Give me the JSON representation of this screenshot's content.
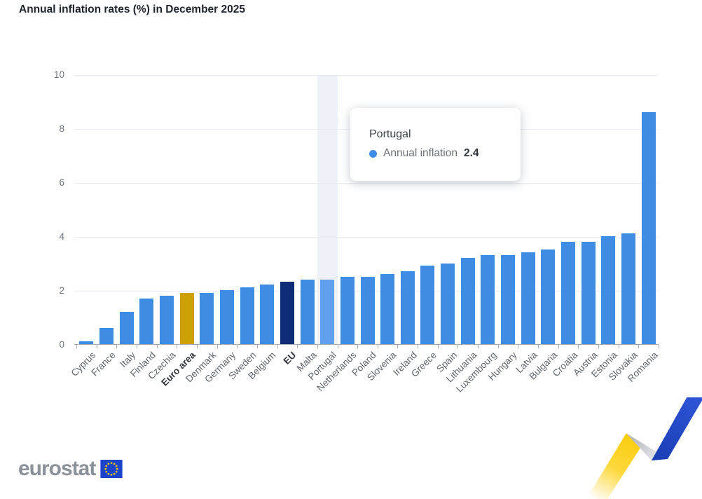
{
  "title": "Annual inflation rates (%) in December 2025",
  "chart_data": {
    "type": "bar",
    "title": "Annual inflation rates (%) in December 2025",
    "series_name": "Annual inflation",
    "categories": [
      "Cyprus",
      "France",
      "Italy",
      "Finland",
      "Czechia",
      "Euro area",
      "Denmark",
      "Germany",
      "Sweden",
      "Belgium",
      "EU",
      "Malta",
      "Portugal",
      "Netherlands",
      "Poland",
      "Slovenia",
      "Ireland",
      "Greece",
      "Spain",
      "Lithuania",
      "Luxembourg",
      "Hungary",
      "Latvia",
      "Bulgaria",
      "Croatia",
      "Austria",
      "Estonia",
      "Slovakia",
      "Romania"
    ],
    "values": [
      0.1,
      0.6,
      1.2,
      1.7,
      1.8,
      1.9,
      1.9,
      2.0,
      2.1,
      2.2,
      2.3,
      2.4,
      2.4,
      2.5,
      2.5,
      2.6,
      2.7,
      2.9,
      3.0,
      3.2,
      3.3,
      3.3,
      3.4,
      3.5,
      3.8,
      3.8,
      4.0,
      4.1,
      8.6
    ],
    "ylim": [
      0,
      10
    ],
    "yticks": [
      0,
      2,
      4,
      6,
      8,
      10
    ],
    "grid": true,
    "legend": "none",
    "bold_labels": [
      "Euro area",
      "EU"
    ],
    "bar_color_overrides": {
      "Euro area": "euroArea",
      "EU": "eu",
      "Portugal": "highlight"
    },
    "highlight_category": "Portugal"
  },
  "tooltip": {
    "title": "Portugal",
    "series_label": "Annual inflation",
    "value": "2.4"
  },
  "footer": {
    "logo_text": "eurostat"
  },
  "colors": {
    "bar": "#3e8ce4",
    "euroArea": "#cda106",
    "eu": "#0e2d76",
    "highlight": "#61a0ec",
    "hoverBand": "#eef1f8",
    "gridline": "#e8ecf3",
    "axis": "#a6abb3",
    "tooltipDot": "#3e8ce4"
  }
}
